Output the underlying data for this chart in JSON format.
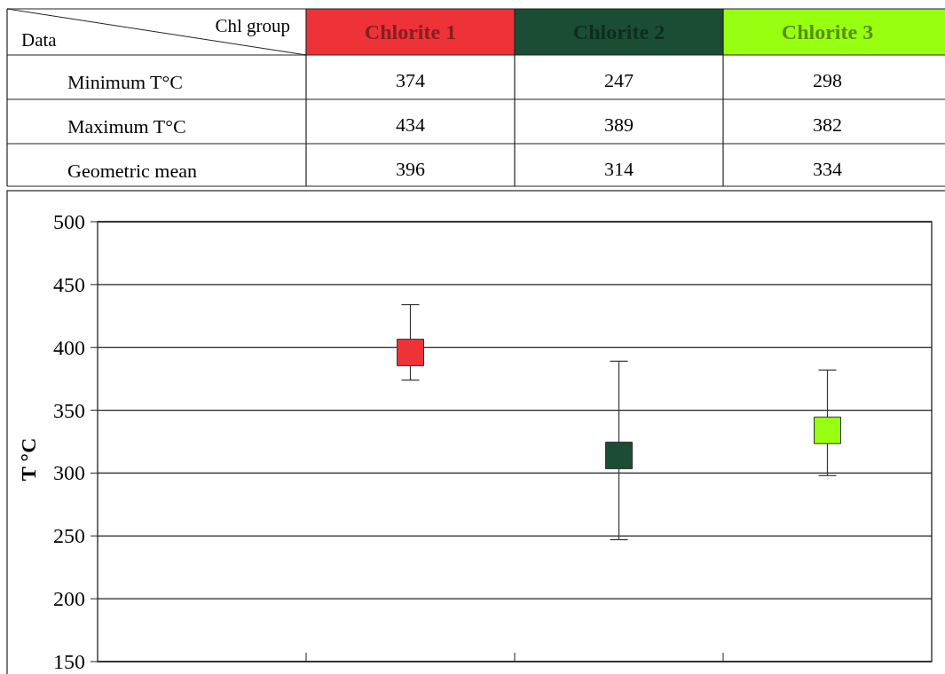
{
  "chart_data": [
    {
      "type": "heatmap",
      "categories": [
        "Chlorite 1",
        "Chlorite 2",
        "Chlorite 3"
      ],
      "y_categories": [
        "Minimum T°C",
        "Maximum T°C",
        "Geometric mean"
      ],
      "cells": [
        [
          374,
          247,
          298
        ],
        [
          434,
          389,
          382
        ],
        [
          396,
          314,
          334
        ]
      ],
      "data_labels": true,
      "annotations": [
        "Data",
        "Chl group"
      ]
    },
    {
      "type": "scatter",
      "categories": [
        null,
        null,
        null,
        null
      ],
      "ylabel": "T °C",
      "series": [
        {
          "values": [
            null,
            396,
            314,
            334
          ],
          "colors": [
            null,
            "#ee3338",
            "#1b4d35",
            "#99ff11"
          ],
          "errors": [
            null,
            [
              374,
              434
            ],
            [
              247,
              389
            ],
            [
              298,
              382
            ]
          ]
        }
      ],
      "ylim": [
        150,
        500
      ],
      "yticks": [
        150,
        200,
        250,
        300,
        350,
        400,
        450,
        500
      ],
      "grid": "y",
      "marker": "square",
      "tick_labels": "y"
    }
  ]
}
